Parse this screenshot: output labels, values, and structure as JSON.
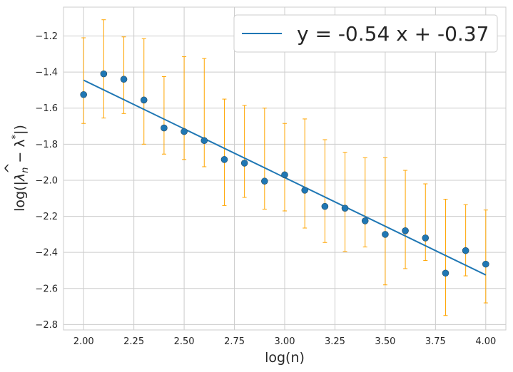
{
  "chart_data": {
    "type": "scatter",
    "xlabel": "log(n)",
    "ylabel_prefix": "log(|",
    "ylabel_lambda": "λ",
    "ylabel_hat": "^",
    "ylabel_sub": "n",
    "ylabel_mid": " − λ",
    "ylabel_sup": "*",
    "ylabel_suffix": "|)",
    "xlim": [
      1.9,
      4.1
    ],
    "ylim": [
      -2.83,
      -1.04
    ],
    "xticks": [
      2.0,
      2.25,
      2.5,
      2.75,
      3.0,
      3.25,
      3.5,
      3.75,
      4.0
    ],
    "xtick_labels": [
      "2.00",
      "2.25",
      "2.50",
      "2.75",
      "3.00",
      "3.25",
      "3.50",
      "3.75",
      "4.00"
    ],
    "yticks": [
      -2.8,
      -2.6,
      -2.4,
      -2.2,
      -2.0,
      -1.8,
      -1.6,
      -1.4,
      -1.2
    ],
    "ytick_labels": [
      "−2.8",
      "−2.6",
      "−2.4",
      "−2.2",
      "−2.0",
      "−1.8",
      "−1.6",
      "−1.4",
      "−1.2"
    ],
    "grid": true,
    "legend_position": "top-right",
    "points": {
      "x": [
        2.0,
        2.1,
        2.2,
        2.3,
        2.4,
        2.5,
        2.6,
        2.7,
        2.8,
        2.9,
        3.0,
        3.1,
        3.2,
        3.3,
        3.4,
        3.5,
        3.6,
        3.7,
        3.8,
        3.9,
        4.0
      ],
      "y": [
        -1.525,
        -1.41,
        -1.44,
        -1.555,
        -1.71,
        -1.73,
        -1.78,
        -1.885,
        -1.905,
        -2.005,
        -1.97,
        -2.055,
        -2.145,
        -2.155,
        -2.225,
        -2.3,
        -2.28,
        -2.32,
        -2.515,
        -2.39,
        -2.465
      ],
      "err_low": [
        -1.685,
        -1.655,
        -1.63,
        -1.8,
        -1.855,
        -1.885,
        -1.925,
        -2.14,
        -2.095,
        -2.16,
        -2.17,
        -2.265,
        -2.345,
        -2.395,
        -2.37,
        -2.58,
        -2.49,
        -2.445,
        -2.75,
        -2.53,
        -2.68
      ],
      "err_high": [
        -1.21,
        -1.11,
        -1.205,
        -1.215,
        -1.425,
        -1.315,
        -1.325,
        -1.55,
        -1.585,
        -1.6,
        -1.685,
        -1.66,
        -1.775,
        -1.845,
        -1.875,
        -1.875,
        -1.945,
        -2.02,
        -2.105,
        -2.135,
        -2.165
      ],
      "color": "#1f77b4",
      "errorbar_color": "#ffa500"
    },
    "fit_line": {
      "label": "y = -0.54 x + -0.37",
      "x": [
        2.0,
        4.0
      ],
      "y": [
        -1.445,
        -2.525
      ],
      "color": "#1f77b4"
    }
  }
}
